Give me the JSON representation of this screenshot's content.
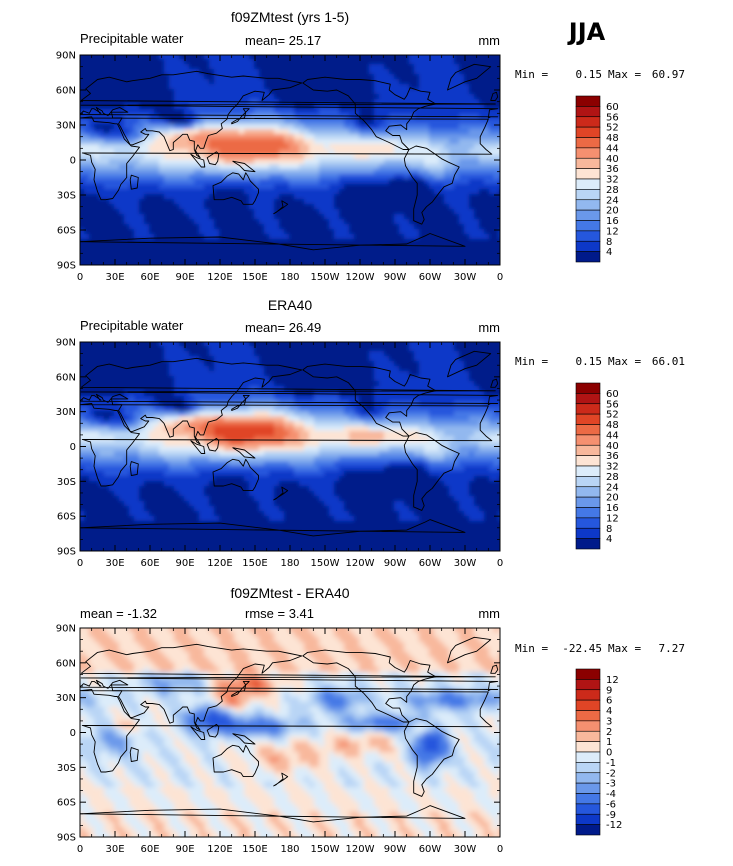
{
  "season_label": "JJA",
  "axes": {
    "lat_ticks": [
      "90N",
      "60N",
      "30N",
      "0",
      "30S",
      "60S",
      "90S"
    ],
    "lon_ticks": [
      "0",
      "30E",
      "60E",
      "90E",
      "120E",
      "150E",
      "180",
      "150W",
      "120W",
      "90W",
      "60W",
      "30W",
      "0"
    ]
  },
  "panels": [
    {
      "title": "f09ZMtest (yrs 1-5)",
      "left_label": "Precipitable water",
      "center_label": "mean=  25.17",
      "units": "mm",
      "min_label": "Min =",
      "min_value": "0.15",
      "max_label": "Max =",
      "max_value": "60.97",
      "colorbar_levels": [
        "60",
        "56",
        "52",
        "48",
        "44",
        "40",
        "36",
        "32",
        "28",
        "24",
        "20",
        "16",
        "12",
        "8",
        "4"
      ],
      "colorbar_colors": [
        "#8b0000",
        "#b01414",
        "#cc2a1a",
        "#e04526",
        "#ec6a45",
        "#f59070",
        "#f8b89c",
        "#fde4d4",
        "#dcecfa",
        "#b9d5f5",
        "#92b8ef",
        "#6a98ea",
        "#4478e6",
        "#2557dd",
        "#0d38c8",
        "#001a8a"
      ],
      "mode": "model"
    },
    {
      "title": "ERA40",
      "left_label": "Precipitable water",
      "center_label": "mean=  26.49",
      "units": "mm",
      "min_label": "Min =",
      "min_value": "0.15",
      "max_label": "Max =",
      "max_value": "66.01",
      "colorbar_levels": [
        "60",
        "56",
        "52",
        "48",
        "44",
        "40",
        "36",
        "32",
        "28",
        "24",
        "20",
        "16",
        "12",
        "8",
        "4"
      ],
      "colorbar_colors": [
        "#8b0000",
        "#b01414",
        "#cc2a1a",
        "#e04526",
        "#ec6a45",
        "#f59070",
        "#f8b89c",
        "#fde4d4",
        "#dcecfa",
        "#b9d5f5",
        "#92b8ef",
        "#6a98ea",
        "#4478e6",
        "#2557dd",
        "#0d38c8",
        "#001a8a"
      ],
      "mode": "obs"
    },
    {
      "title": "f09ZMtest - ERA40",
      "left_label": "mean =  -1.32",
      "center_label": "rmse =   3.41",
      "units": "mm",
      "min_label": "Min =",
      "min_value": "-22.45",
      "max_label": "Max =",
      "max_value": "7.27",
      "colorbar_levels": [
        "12",
        "9",
        "6",
        "4",
        "3",
        "2",
        "1",
        "0",
        "-1",
        "-2",
        "-3",
        "-4",
        "-6",
        "-9",
        "-12"
      ],
      "colorbar_colors": [
        "#8b0000",
        "#b01414",
        "#cc2a1a",
        "#e04526",
        "#ec6a45",
        "#f59070",
        "#f8b89c",
        "#fde4d4",
        "#dcecfa",
        "#b9d5f5",
        "#92b8ef",
        "#6a98ea",
        "#4478e6",
        "#2557dd",
        "#0d38c8",
        "#001a8a"
      ],
      "mode": "diff"
    }
  ]
}
